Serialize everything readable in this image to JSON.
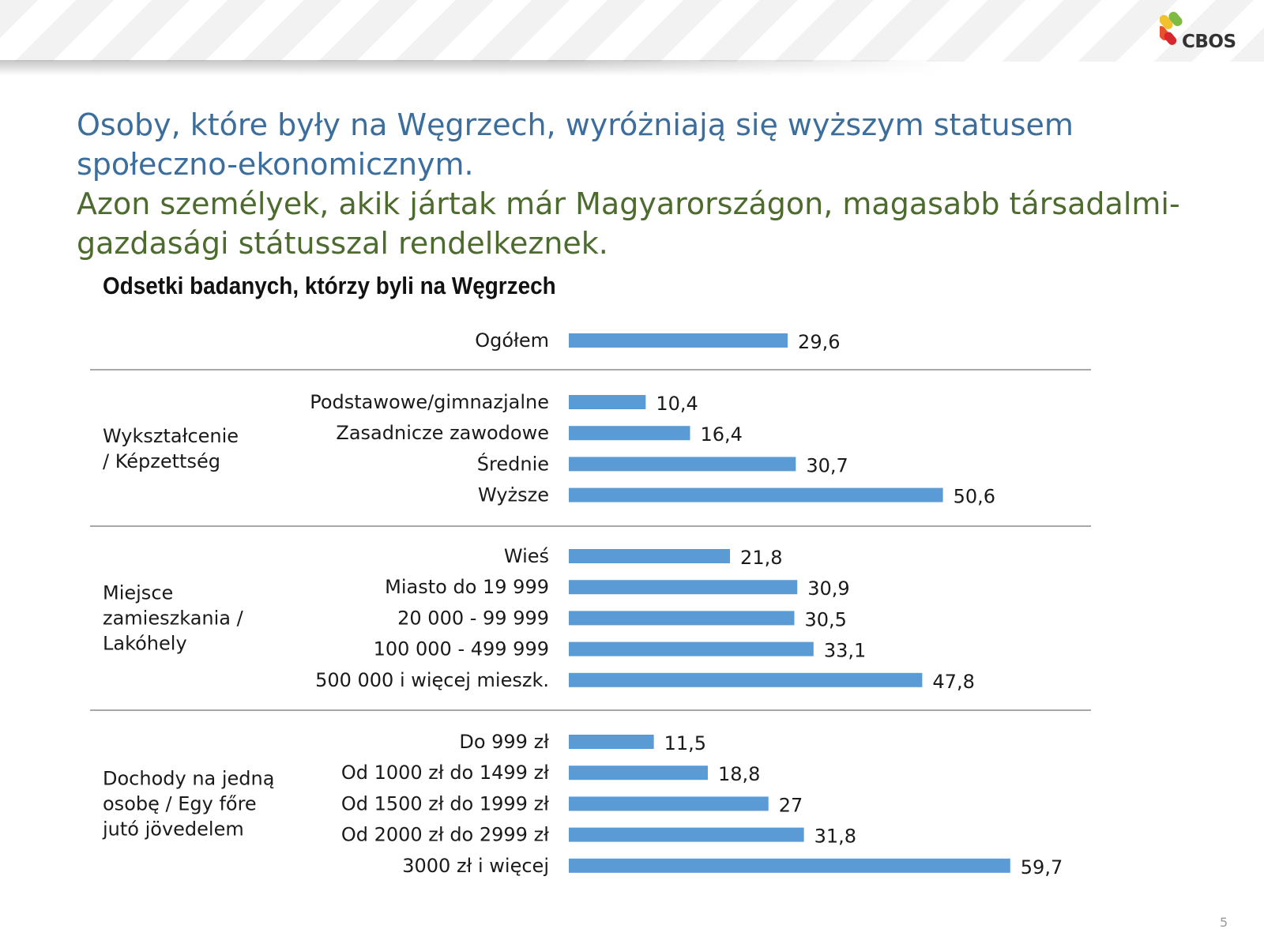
{
  "title_pl": "Osoby, które były na Węgrzech, wyróżniają się wyższym statusem społeczno-ekonomicznym.",
  "title_hu": "Azon személyek, akik jártak már Magyarországon, magasabb társadalmi-gazdasági státusszal rendelkeznek.",
  "logo_text": "CBOS",
  "page_number": "5",
  "colors": {
    "bar": "#5B9BD5",
    "title_pl": "#3B6E9C",
    "title_hu": "#4D6B2E",
    "separator": "#8c8c8c"
  },
  "chart_data": {
    "type": "bar",
    "orientation": "horizontal",
    "title": "Odsetki badanych, którzy byli na Węgrzech",
    "xlabel": "",
    "ylabel": "",
    "xlim": [
      0,
      60
    ],
    "grid": false,
    "legend": "none",
    "groups": [
      {
        "name": "",
        "categories": [
          "Ogółem"
        ],
        "values": [
          29.6
        ],
        "labels": [
          "29,6"
        ]
      },
      {
        "name": "Wykształcenie / Képzettség",
        "categories": [
          "Podstawowe/gimnazjalne",
          "Zasadnicze zawodowe",
          "Średnie",
          "Wyższe"
        ],
        "values": [
          10.4,
          16.4,
          30.7,
          50.6
        ],
        "labels": [
          "10,4",
          "16,4",
          "30,7",
          "50,6"
        ]
      },
      {
        "name": "Miejsce zamieszkania / Lakóhely",
        "categories": [
          "Wieś",
          "Miasto do 19 999",
          "20 000 - 99 999",
          "100 000 - 499 999",
          "500 000 i więcej mieszk."
        ],
        "values": [
          21.8,
          30.9,
          30.5,
          33.1,
          47.8
        ],
        "labels": [
          "21,8",
          "30,9",
          "30,5",
          "33,1",
          "47,8"
        ]
      },
      {
        "name": "Dochody na jedną osobę / Egy főre jutó jövedelem",
        "categories": [
          "Do 999 zł",
          "Od 1000 zł do 1499 zł",
          "Od 1500 zł do 1999 zł",
          "Od 2000 zł do 2999 zł",
          "3000 zł i więcej"
        ],
        "values": [
          11.5,
          18.8,
          27,
          31.8,
          59.7
        ],
        "labels": [
          "11,5",
          "18,8",
          "27",
          "31,8",
          "59,7"
        ]
      }
    ]
  }
}
